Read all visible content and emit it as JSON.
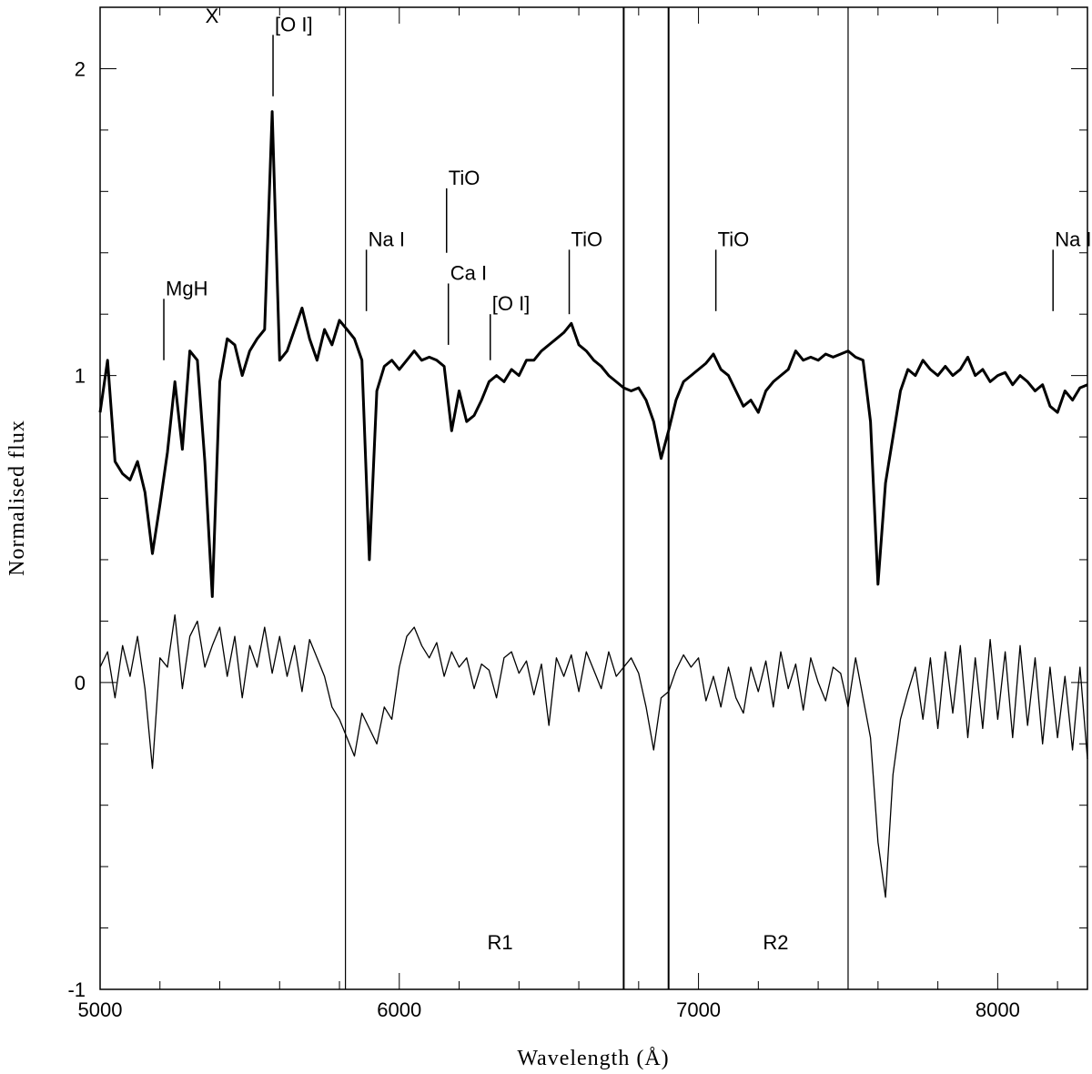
{
  "chart_data": {
    "type": "line",
    "x_label": "Wavelength (Å)",
    "y_label": "Normalised flux",
    "xlim": [
      5000,
      8300
    ],
    "ylim": [
      -1,
      2.2
    ],
    "xticks": [
      5000,
      6000,
      7000,
      8000
    ],
    "yticks": [
      -1,
      0,
      1,
      2
    ],
    "xminorticks": [
      5200,
      5400,
      5600,
      5800,
      6200,
      6400,
      6600,
      6800,
      7200,
      7400,
      7600,
      7800,
      8200
    ],
    "yminorticks": [
      -0.8,
      -0.6,
      -0.4,
      -0.2,
      0.2,
      0.4,
      0.6,
      0.8,
      1.2,
      1.4,
      1.6,
      1.8
    ],
    "x": [
      5000,
      5025,
      5050,
      5075,
      5100,
      5125,
      5150,
      5175,
      5200,
      5225,
      5250,
      5275,
      5300,
      5325,
      5350,
      5375,
      5400,
      5425,
      5450,
      5475,
      5500,
      5525,
      5550,
      5575,
      5600,
      5625,
      5650,
      5675,
      5700,
      5725,
      5750,
      5775,
      5800,
      5825,
      5850,
      5875,
      5900,
      5925,
      5950,
      5975,
      6000,
      6025,
      6050,
      6075,
      6100,
      6125,
      6150,
      6175,
      6200,
      6225,
      6250,
      6275,
      6300,
      6325,
      6350,
      6375,
      6400,
      6425,
      6450,
      6475,
      6500,
      6525,
      6550,
      6575,
      6600,
      6625,
      6650,
      6675,
      6700,
      6725,
      6750,
      6775,
      6800,
      6825,
      6850,
      6875,
      6900,
      6925,
      6950,
      6975,
      7000,
      7025,
      7050,
      7075,
      7100,
      7125,
      7150,
      7175,
      7200,
      7225,
      7250,
      7275,
      7300,
      7325,
      7350,
      7375,
      7400,
      7425,
      7450,
      7475,
      7500,
      7525,
      7550,
      7575,
      7600,
      7625,
      7650,
      7675,
      7700,
      7725,
      7750,
      7775,
      7800,
      7825,
      7850,
      7875,
      7900,
      7925,
      7950,
      7975,
      8000,
      8025,
      8050,
      8075,
      8100,
      8125,
      8150,
      8175,
      8200,
      8225,
      8250,
      8275,
      8300
    ],
    "series": [
      {
        "color": "#000000",
        "values": [
          0.88,
          1.05,
          0.72,
          0.68,
          0.66,
          0.72,
          0.62,
          0.42,
          0.58,
          0.75,
          0.98,
          0.76,
          1.08,
          1.05,
          0.72,
          0.28,
          0.98,
          1.12,
          1.1,
          1.0,
          1.08,
          1.12,
          1.15,
          1.86,
          1.05,
          1.08,
          1.15,
          1.22,
          1.12,
          1.05,
          1.15,
          1.1,
          1.18,
          1.15,
          1.12,
          1.05,
          0.4,
          0.95,
          1.03,
          1.05,
          1.02,
          1.05,
          1.08,
          1.05,
          1.06,
          1.05,
          1.03,
          0.82,
          0.95,
          0.85,
          0.87,
          0.92,
          0.98,
          1.0,
          0.98,
          1.02,
          1.0,
          1.05,
          1.05,
          1.08,
          1.1,
          1.12,
          1.14,
          1.17,
          1.1,
          1.08,
          1.05,
          1.03,
          1.0,
          0.98,
          0.96,
          0.95,
          0.96,
          0.92,
          0.85,
          0.73,
          0.82,
          0.92,
          0.98,
          1.0,
          1.02,
          1.04,
          1.07,
          1.02,
          1.0,
          0.95,
          0.9,
          0.92,
          0.88,
          0.95,
          0.98,
          1.0,
          1.02,
          1.08,
          1.05,
          1.06,
          1.05,
          1.07,
          1.06,
          1.07,
          1.08,
          1.06,
          1.05,
          0.85,
          0.32,
          0.65,
          0.8,
          0.95,
          1.02,
          1.0,
          1.05,
          1.02,
          1.0,
          1.03,
          1.0,
          1.02,
          1.06,
          1.0,
          1.02,
          0.98,
          1.0,
          1.01,
          0.97,
          1.0,
          0.98,
          0.95,
          0.97,
          0.9,
          0.88,
          0.95,
          0.92,
          0.96,
          0.97
        ]
      },
      {
        "color": "#000000",
        "values": [
          0.05,
          0.1,
          -0.05,
          0.12,
          0.02,
          0.15,
          -0.02,
          -0.28,
          0.08,
          0.05,
          0.22,
          -0.02,
          0.15,
          0.2,
          0.05,
          0.12,
          0.18,
          0.02,
          0.15,
          -0.05,
          0.12,
          0.05,
          0.18,
          0.03,
          0.15,
          0.02,
          0.12,
          -0.03,
          0.14,
          0.08,
          0.02,
          -0.08,
          -0.12,
          -0.18,
          -0.24,
          -0.1,
          -0.15,
          -0.2,
          -0.08,
          -0.12,
          0.05,
          0.15,
          0.18,
          0.12,
          0.08,
          0.13,
          0.02,
          0.1,
          0.05,
          0.08,
          -0.02,
          0.06,
          0.04,
          -0.05,
          0.08,
          0.1,
          0.03,
          0.07,
          -0.04,
          0.06,
          -0.14,
          0.08,
          0.02,
          0.09,
          -0.03,
          0.1,
          0.04,
          -0.02,
          0.1,
          0.02,
          0.05,
          0.08,
          0.03,
          -0.08,
          -0.22,
          -0.05,
          -0.03,
          0.04,
          0.09,
          0.05,
          0.08,
          -0.06,
          0.02,
          -0.08,
          0.05,
          -0.05,
          -0.1,
          0.05,
          -0.03,
          0.07,
          -0.08,
          0.1,
          -0.02,
          0.06,
          -0.09,
          0.08,
          0.0,
          -0.06,
          0.05,
          0.03,
          -0.08,
          0.08,
          -0.05,
          -0.18,
          -0.52,
          -0.7,
          -0.3,
          -0.12,
          -0.03,
          0.05,
          -0.12,
          0.08,
          -0.15,
          0.1,
          -0.1,
          0.12,
          -0.18,
          0.08,
          -0.15,
          0.14,
          -0.12,
          0.1,
          -0.18,
          0.12,
          -0.14,
          0.08,
          -0.2,
          0.05,
          -0.18,
          0.02,
          -0.22,
          0.05,
          -0.25
        ]
      }
    ],
    "vlines": [
      5820,
      6750,
      6900,
      7500
    ],
    "regions": [
      {
        "label": "R1",
        "x": 6337,
        "y": -0.87
      },
      {
        "label": "R2",
        "x": 7258,
        "y": -0.87
      }
    ],
    "annotations": [
      {
        "label": "X",
        "x": 5374,
        "y": 2.15
      },
      {
        "label": "[O I]",
        "x": 5578,
        "y": 1.91,
        "y2": 2.11
      },
      {
        "label": "MgH",
        "x": 5213,
        "y": 1.05,
        "y2": 1.25
      },
      {
        "label": "Na I",
        "x": 5890,
        "y": 1.21,
        "y2": 1.41
      },
      {
        "label": "TiO",
        "x": 6158,
        "y": 1.4,
        "y2": 1.61
      },
      {
        "label": "Ca I",
        "x": 6164,
        "y": 1.1,
        "y2": 1.3
      },
      {
        "label": "[O I]",
        "x": 6304,
        "y": 1.05,
        "y2": 1.2
      },
      {
        "label": "TiO",
        "x": 6568,
        "y": 1.2,
        "y2": 1.41
      },
      {
        "label": "TiO",
        "x": 7058,
        "y": 1.21,
        "y2": 1.41
      },
      {
        "label": "Na I",
        "x": 8185,
        "y": 1.21,
        "y2": 1.41
      }
    ]
  }
}
